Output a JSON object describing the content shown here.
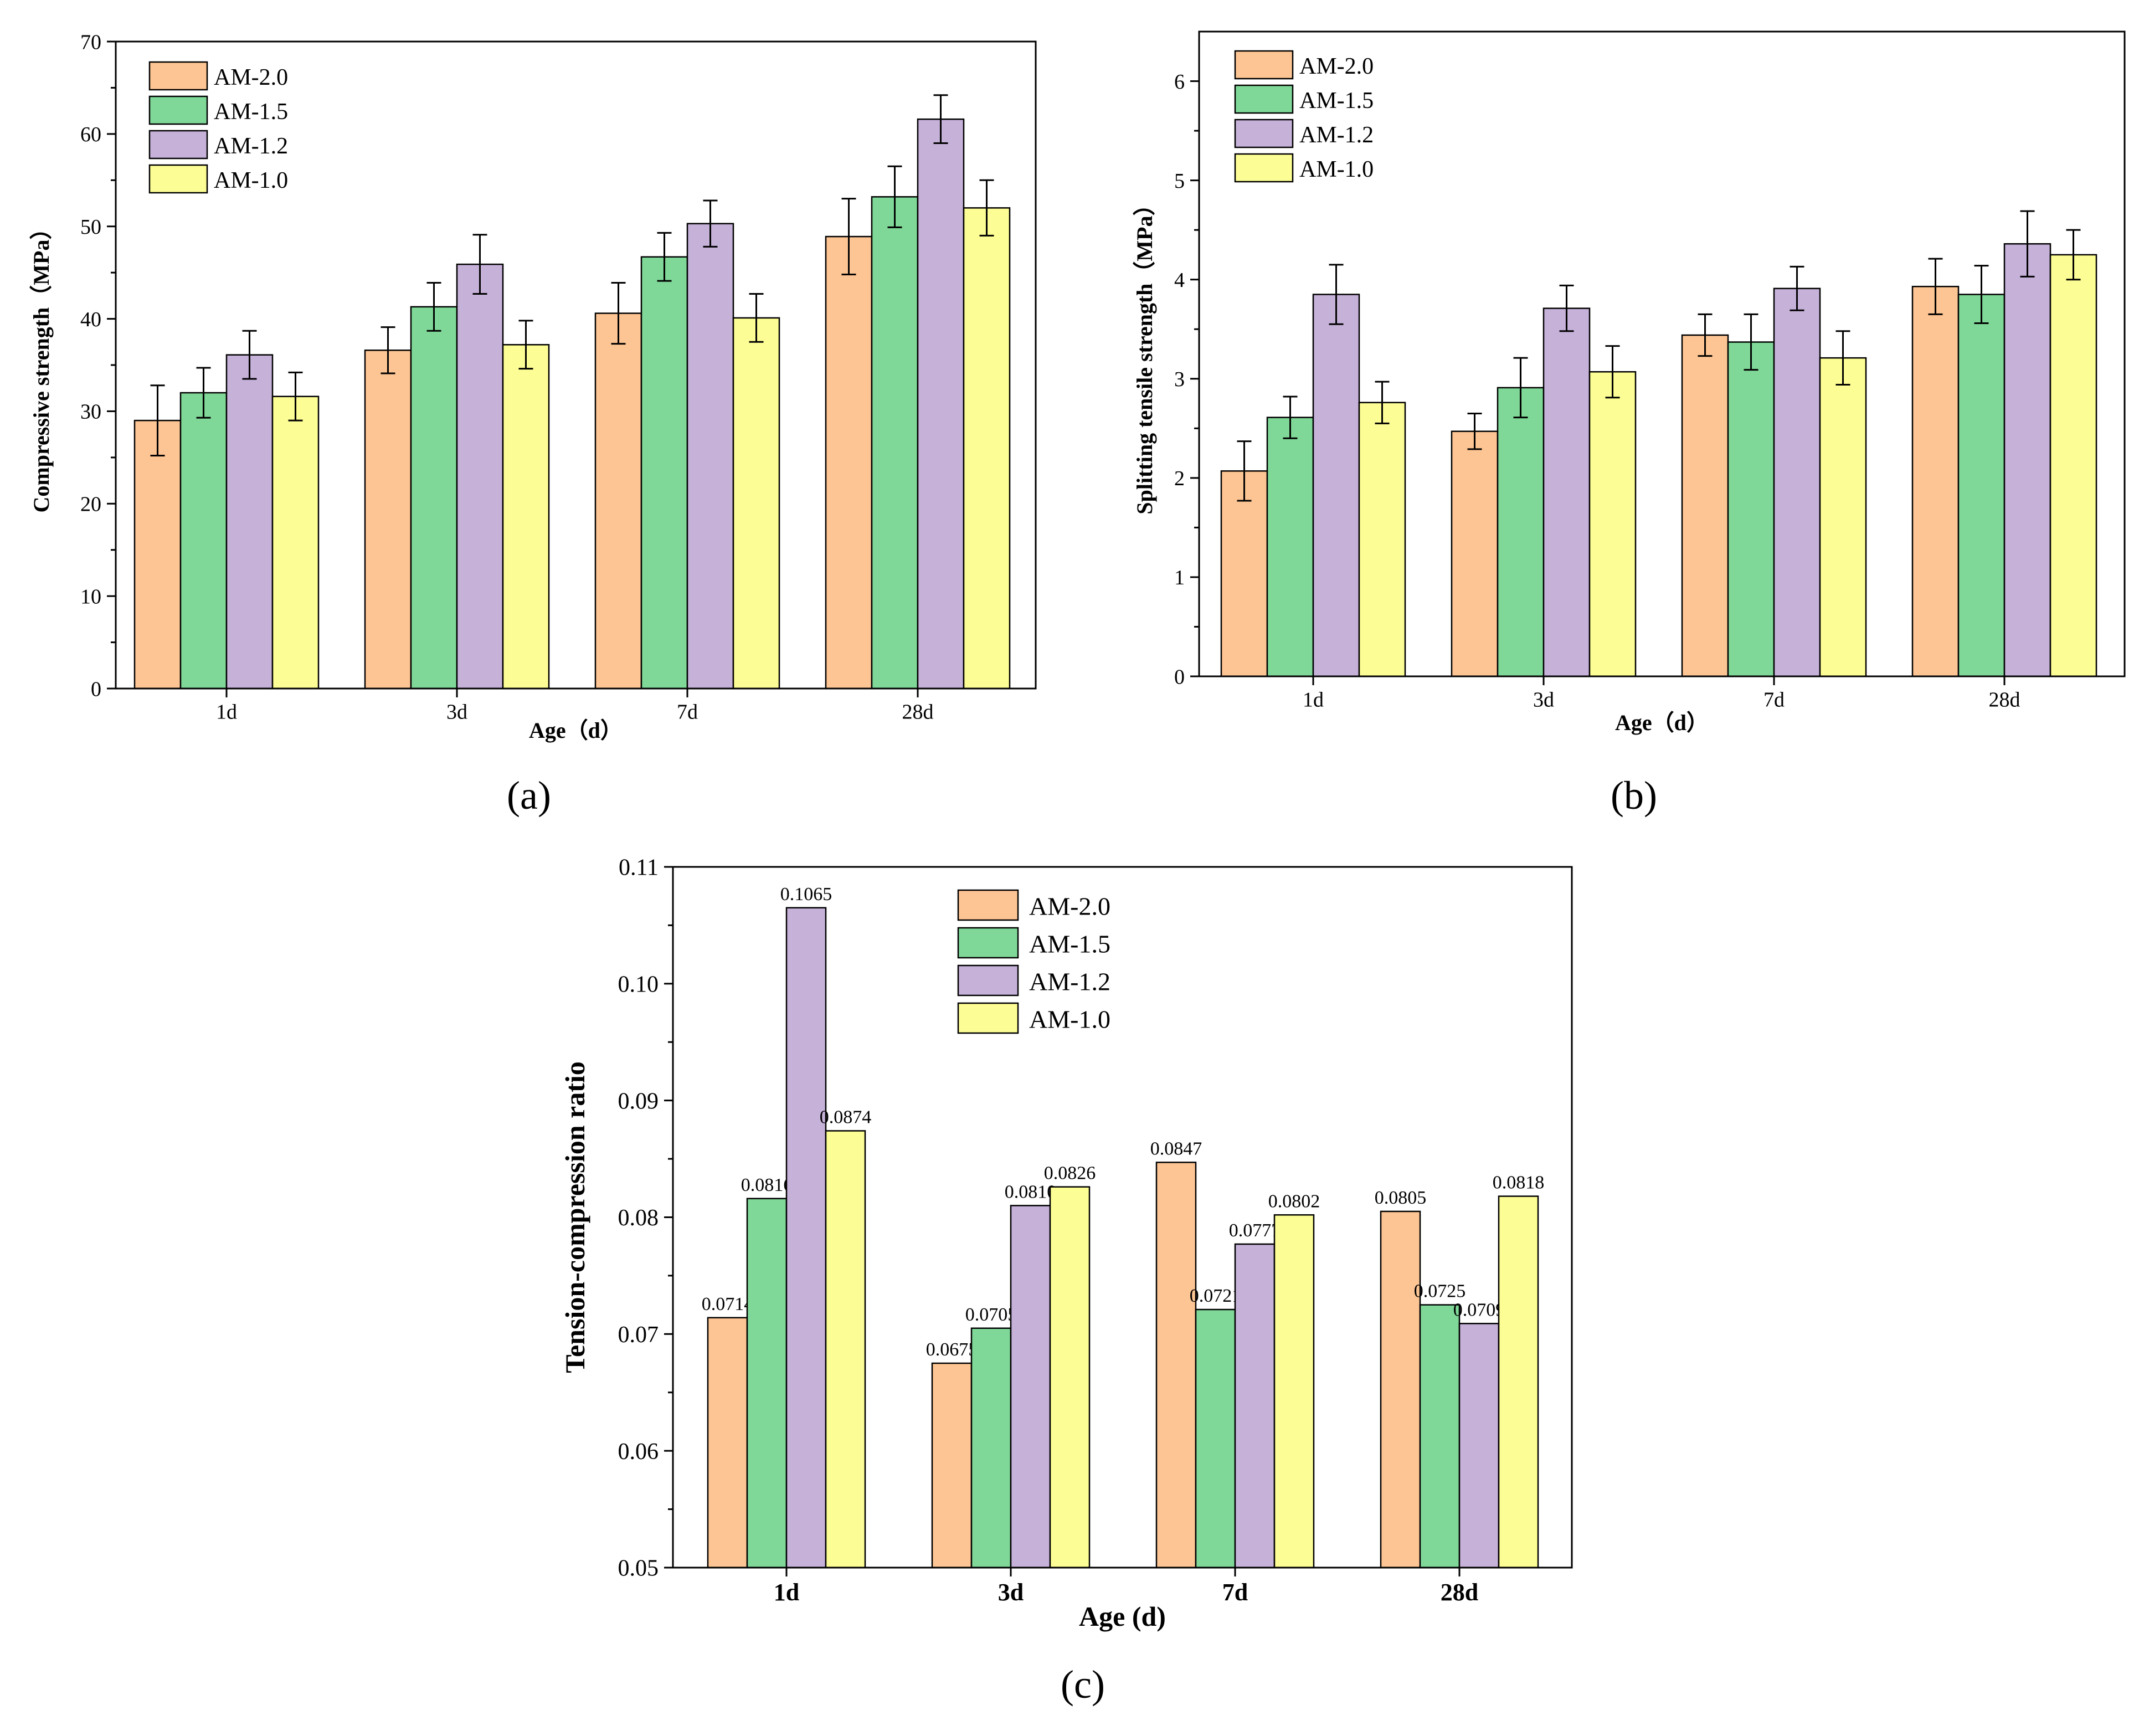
{
  "colors": {
    "AM-2.0": "#FDC593",
    "AM-1.5": "#7FD898",
    "AM-1.2": "#C6B1D9",
    "AM-1.0": "#FDFD95",
    "axis": "#000000",
    "bar_edge": "#000000"
  },
  "chart_data": [
    {
      "id": "a",
      "panel_label": "(a)",
      "type": "bar",
      "title": "",
      "xlabel": "Age（d）",
      "ylabel": "Compressive strength（MPa）",
      "categories": [
        "1d",
        "3d",
        "7d",
        "28d"
      ],
      "ylim": [
        0,
        70
      ],
      "yticks": [
        "0",
        "10",
        "20",
        "30",
        "40",
        "50",
        "60",
        "70"
      ],
      "legend_position": "top-left",
      "error_bars": true,
      "series": [
        {
          "name": "AM-2.0",
          "values": [
            29.0,
            36.6,
            40.6,
            48.9
          ],
          "errors": [
            3.8,
            2.5,
            3.3,
            4.1
          ]
        },
        {
          "name": "AM-1.5",
          "values": [
            32.0,
            41.3,
            46.7,
            53.2
          ],
          "errors": [
            2.7,
            2.6,
            2.6,
            3.3
          ]
        },
        {
          "name": "AM-1.2",
          "values": [
            36.1,
            45.9,
            50.3,
            61.6
          ],
          "errors": [
            2.6,
            3.2,
            2.5,
            2.6
          ]
        },
        {
          "name": "AM-1.0",
          "values": [
            31.6,
            37.2,
            40.1,
            52.0
          ],
          "errors": [
            2.6,
            2.6,
            2.6,
            3.0
          ]
        }
      ]
    },
    {
      "id": "b",
      "panel_label": "(b)",
      "type": "bar",
      "title": "",
      "xlabel": "Age（d）",
      "ylabel": "Splitting tensile strength（MPa）",
      "categories": [
        "1d",
        "3d",
        "7d",
        "28d"
      ],
      "ylim": [
        0,
        6.5
      ],
      "yticks": [
        "0",
        "1",
        "2",
        "3",
        "4",
        "5",
        "6"
      ],
      "legend_position": "top-left",
      "error_bars": true,
      "series": [
        {
          "name": "AM-2.0",
          "values": [
            2.07,
            2.47,
            3.44,
            3.93
          ],
          "errors": [
            0.3,
            0.18,
            0.21,
            0.28
          ]
        },
        {
          "name": "AM-1.5",
          "values": [
            2.61,
            2.91,
            3.37,
            3.85
          ],
          "errors": [
            0.21,
            0.3,
            0.28,
            0.29
          ]
        },
        {
          "name": "AM-1.2",
          "values": [
            3.85,
            3.71,
            3.91,
            4.36
          ],
          "errors": [
            0.3,
            0.23,
            0.22,
            0.33
          ]
        },
        {
          "name": "AM-1.0",
          "values": [
            2.76,
            3.07,
            3.21,
            4.25
          ],
          "errors": [
            0.21,
            0.26,
            0.27,
            0.25
          ]
        }
      ]
    },
    {
      "id": "c",
      "panel_label": "(c)",
      "type": "bar",
      "title": "",
      "xlabel": "Age (d)",
      "ylabel": "Tension-compression ratio",
      "categories": [
        "1d",
        "3d",
        "7d",
        "28d"
      ],
      "ylim": [
        0.05,
        0.11
      ],
      "yticks": [
        "0.05",
        "0.06",
        "0.07",
        "0.08",
        "0.09",
        "0.10",
        "0.11"
      ],
      "legend_position": "top-right",
      "error_bars": false,
      "series": [
        {
          "name": "AM-2.0",
          "values": [
            0.0714,
            0.0675,
            0.0847,
            0.0805
          ],
          "labels": [
            "0.0714",
            "0.0675",
            "0.0847",
            "0.0805"
          ]
        },
        {
          "name": "AM-1.5",
          "values": [
            0.0816,
            0.0705,
            0.0721,
            0.0725
          ],
          "labels": [
            "0.0816",
            "0.0705",
            "0.0721",
            "0.0725"
          ]
        },
        {
          "name": "AM-1.2",
          "values": [
            0.1065,
            0.081,
            0.0777,
            0.0709
          ],
          "labels": [
            "0.1065",
            "0.0810",
            "0.0777",
            "0.0709"
          ]
        },
        {
          "name": "AM-1.0",
          "values": [
            0.0874,
            0.0826,
            0.0802,
            0.0818
          ],
          "labels": [
            "0.0874",
            "0.0826",
            "0.0802",
            "0.0818"
          ]
        }
      ]
    }
  ]
}
